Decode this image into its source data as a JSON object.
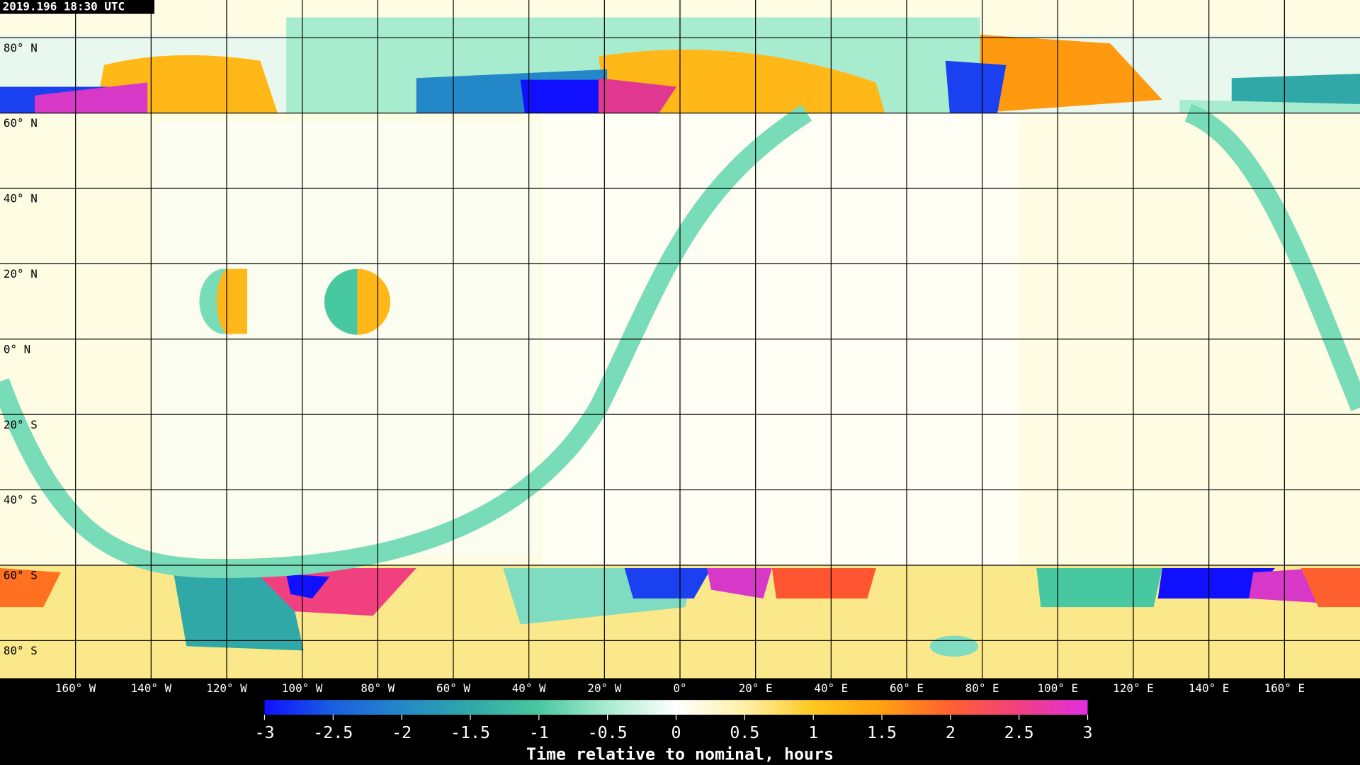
{
  "header": {
    "timestamp": "2019.196 18:30 UTC"
  },
  "map": {
    "projection": "equirectangular",
    "latticks": [
      {
        "value": 80,
        "label": "80° N"
      },
      {
        "value": 60,
        "label": "60° N"
      },
      {
        "value": 40,
        "label": "40° N"
      },
      {
        "value": 20,
        "label": "20° N"
      },
      {
        "value": 0,
        "label": "0° N"
      },
      {
        "value": -20,
        "label": "20° S"
      },
      {
        "value": -40,
        "label": "40° S"
      },
      {
        "value": -60,
        "label": "60° S"
      },
      {
        "value": -80,
        "label": "80° S"
      }
    ],
    "lonticks": [
      {
        "value": -160,
        "label": "160° W"
      },
      {
        "value": -140,
        "label": "140° W"
      },
      {
        "value": -120,
        "label": "120° W"
      },
      {
        "value": -100,
        "label": "100° W"
      },
      {
        "value": -80,
        "label": "80° W"
      },
      {
        "value": -60,
        "label": "60° W"
      },
      {
        "value": -40,
        "label": "40° W"
      },
      {
        "value": -20,
        "label": "20° W"
      },
      {
        "value": 0,
        "label": "0°"
      },
      {
        "value": 20,
        "label": "20° E"
      },
      {
        "value": 40,
        "label": "40° E"
      },
      {
        "value": 60,
        "label": "60° E"
      },
      {
        "value": 80,
        "label": "80° E"
      },
      {
        "value": 100,
        "label": "100° E"
      },
      {
        "value": 120,
        "label": "120° E"
      },
      {
        "value": 140,
        "label": "140° E"
      },
      {
        "value": 160,
        "label": "160° E"
      }
    ]
  },
  "colorbar": {
    "title": "Time relative to nominal, hours",
    "lim": [
      -3,
      3
    ],
    "ticks": [
      -3,
      -2.5,
      -2,
      -1.5,
      -1,
      -0.5,
      0,
      0.5,
      1,
      1.5,
      2,
      2.5,
      3
    ],
    "colors": [
      "#1010ff",
      "#1a60e0",
      "#2488c8",
      "#30a8a8",
      "#48c8a0",
      "#a8ecd0",
      "#ffffff",
      "#fff0a8",
      "#ffc820",
      "#ffa010",
      "#ff6030",
      "#f04080",
      "#e030e0"
    ]
  }
}
